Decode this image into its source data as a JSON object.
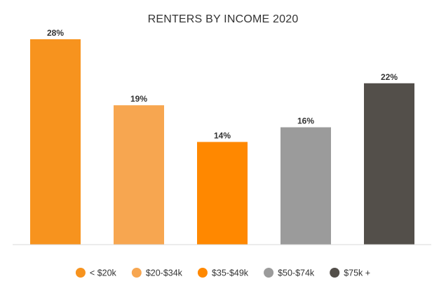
{
  "chart_data": {
    "type": "bar",
    "title": "RENTERS BY INCOME 2020",
    "categories": [
      "< $20k",
      "$20-$34k",
      "$35-$49k",
      "$50-$74k",
      "$75k +"
    ],
    "values": [
      28,
      19,
      14,
      16,
      22
    ],
    "data_labels": [
      "28%",
      "19%",
      "14%",
      "16%",
      "22%"
    ],
    "colors": [
      "#F7931E",
      "#F7A650",
      "#FF8800",
      "#9B9B9B",
      "#534F4A"
    ],
    "xlabel": "",
    "ylabel": "",
    "ylim": [
      0,
      28
    ],
    "grid": false,
    "legend": "bottom"
  }
}
